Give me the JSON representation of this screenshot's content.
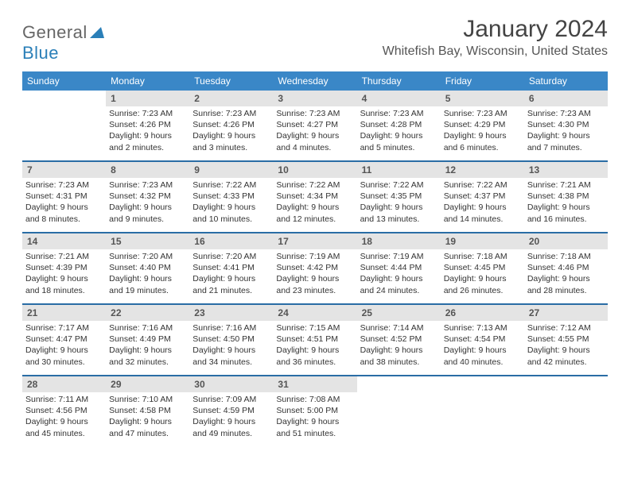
{
  "brand": {
    "part1": "General",
    "part2": "Blue",
    "accent": "#2a7fb8"
  },
  "title": "January 2024",
  "location": "Whitefish Bay, Wisconsin, United States",
  "colors": {
    "header_bg": "#3a87c7",
    "header_fg": "#ffffff",
    "daynum_bg": "#e4e4e4",
    "week_divider": "#2a6da5"
  },
  "dow": [
    "Sunday",
    "Monday",
    "Tuesday",
    "Wednesday",
    "Thursday",
    "Friday",
    "Saturday"
  ],
  "weeks": [
    [
      null,
      {
        "n": "1",
        "sr": "Sunrise: 7:23 AM",
        "ss": "Sunset: 4:26 PM",
        "d1": "Daylight: 9 hours",
        "d2": "and 2 minutes."
      },
      {
        "n": "2",
        "sr": "Sunrise: 7:23 AM",
        "ss": "Sunset: 4:26 PM",
        "d1": "Daylight: 9 hours",
        "d2": "and 3 minutes."
      },
      {
        "n": "3",
        "sr": "Sunrise: 7:23 AM",
        "ss": "Sunset: 4:27 PM",
        "d1": "Daylight: 9 hours",
        "d2": "and 4 minutes."
      },
      {
        "n": "4",
        "sr": "Sunrise: 7:23 AM",
        "ss": "Sunset: 4:28 PM",
        "d1": "Daylight: 9 hours",
        "d2": "and 5 minutes."
      },
      {
        "n": "5",
        "sr": "Sunrise: 7:23 AM",
        "ss": "Sunset: 4:29 PM",
        "d1": "Daylight: 9 hours",
        "d2": "and 6 minutes."
      },
      {
        "n": "6",
        "sr": "Sunrise: 7:23 AM",
        "ss": "Sunset: 4:30 PM",
        "d1": "Daylight: 9 hours",
        "d2": "and 7 minutes."
      }
    ],
    [
      {
        "n": "7",
        "sr": "Sunrise: 7:23 AM",
        "ss": "Sunset: 4:31 PM",
        "d1": "Daylight: 9 hours",
        "d2": "and 8 minutes."
      },
      {
        "n": "8",
        "sr": "Sunrise: 7:23 AM",
        "ss": "Sunset: 4:32 PM",
        "d1": "Daylight: 9 hours",
        "d2": "and 9 minutes."
      },
      {
        "n": "9",
        "sr": "Sunrise: 7:22 AM",
        "ss": "Sunset: 4:33 PM",
        "d1": "Daylight: 9 hours",
        "d2": "and 10 minutes."
      },
      {
        "n": "10",
        "sr": "Sunrise: 7:22 AM",
        "ss": "Sunset: 4:34 PM",
        "d1": "Daylight: 9 hours",
        "d2": "and 12 minutes."
      },
      {
        "n": "11",
        "sr": "Sunrise: 7:22 AM",
        "ss": "Sunset: 4:35 PM",
        "d1": "Daylight: 9 hours",
        "d2": "and 13 minutes."
      },
      {
        "n": "12",
        "sr": "Sunrise: 7:22 AM",
        "ss": "Sunset: 4:37 PM",
        "d1": "Daylight: 9 hours",
        "d2": "and 14 minutes."
      },
      {
        "n": "13",
        "sr": "Sunrise: 7:21 AM",
        "ss": "Sunset: 4:38 PM",
        "d1": "Daylight: 9 hours",
        "d2": "and 16 minutes."
      }
    ],
    [
      {
        "n": "14",
        "sr": "Sunrise: 7:21 AM",
        "ss": "Sunset: 4:39 PM",
        "d1": "Daylight: 9 hours",
        "d2": "and 18 minutes."
      },
      {
        "n": "15",
        "sr": "Sunrise: 7:20 AM",
        "ss": "Sunset: 4:40 PM",
        "d1": "Daylight: 9 hours",
        "d2": "and 19 minutes."
      },
      {
        "n": "16",
        "sr": "Sunrise: 7:20 AM",
        "ss": "Sunset: 4:41 PM",
        "d1": "Daylight: 9 hours",
        "d2": "and 21 minutes."
      },
      {
        "n": "17",
        "sr": "Sunrise: 7:19 AM",
        "ss": "Sunset: 4:42 PM",
        "d1": "Daylight: 9 hours",
        "d2": "and 23 minutes."
      },
      {
        "n": "18",
        "sr": "Sunrise: 7:19 AM",
        "ss": "Sunset: 4:44 PM",
        "d1": "Daylight: 9 hours",
        "d2": "and 24 minutes."
      },
      {
        "n": "19",
        "sr": "Sunrise: 7:18 AM",
        "ss": "Sunset: 4:45 PM",
        "d1": "Daylight: 9 hours",
        "d2": "and 26 minutes."
      },
      {
        "n": "20",
        "sr": "Sunrise: 7:18 AM",
        "ss": "Sunset: 4:46 PM",
        "d1": "Daylight: 9 hours",
        "d2": "and 28 minutes."
      }
    ],
    [
      {
        "n": "21",
        "sr": "Sunrise: 7:17 AM",
        "ss": "Sunset: 4:47 PM",
        "d1": "Daylight: 9 hours",
        "d2": "and 30 minutes."
      },
      {
        "n": "22",
        "sr": "Sunrise: 7:16 AM",
        "ss": "Sunset: 4:49 PM",
        "d1": "Daylight: 9 hours",
        "d2": "and 32 minutes."
      },
      {
        "n": "23",
        "sr": "Sunrise: 7:16 AM",
        "ss": "Sunset: 4:50 PM",
        "d1": "Daylight: 9 hours",
        "d2": "and 34 minutes."
      },
      {
        "n": "24",
        "sr": "Sunrise: 7:15 AM",
        "ss": "Sunset: 4:51 PM",
        "d1": "Daylight: 9 hours",
        "d2": "and 36 minutes."
      },
      {
        "n": "25",
        "sr": "Sunrise: 7:14 AM",
        "ss": "Sunset: 4:52 PM",
        "d1": "Daylight: 9 hours",
        "d2": "and 38 minutes."
      },
      {
        "n": "26",
        "sr": "Sunrise: 7:13 AM",
        "ss": "Sunset: 4:54 PM",
        "d1": "Daylight: 9 hours",
        "d2": "and 40 minutes."
      },
      {
        "n": "27",
        "sr": "Sunrise: 7:12 AM",
        "ss": "Sunset: 4:55 PM",
        "d1": "Daylight: 9 hours",
        "d2": "and 42 minutes."
      }
    ],
    [
      {
        "n": "28",
        "sr": "Sunrise: 7:11 AM",
        "ss": "Sunset: 4:56 PM",
        "d1": "Daylight: 9 hours",
        "d2": "and 45 minutes."
      },
      {
        "n": "29",
        "sr": "Sunrise: 7:10 AM",
        "ss": "Sunset: 4:58 PM",
        "d1": "Daylight: 9 hours",
        "d2": "and 47 minutes."
      },
      {
        "n": "30",
        "sr": "Sunrise: 7:09 AM",
        "ss": "Sunset: 4:59 PM",
        "d1": "Daylight: 9 hours",
        "d2": "and 49 minutes."
      },
      {
        "n": "31",
        "sr": "Sunrise: 7:08 AM",
        "ss": "Sunset: 5:00 PM",
        "d1": "Daylight: 9 hours",
        "d2": "and 51 minutes."
      },
      null,
      null,
      null
    ]
  ]
}
